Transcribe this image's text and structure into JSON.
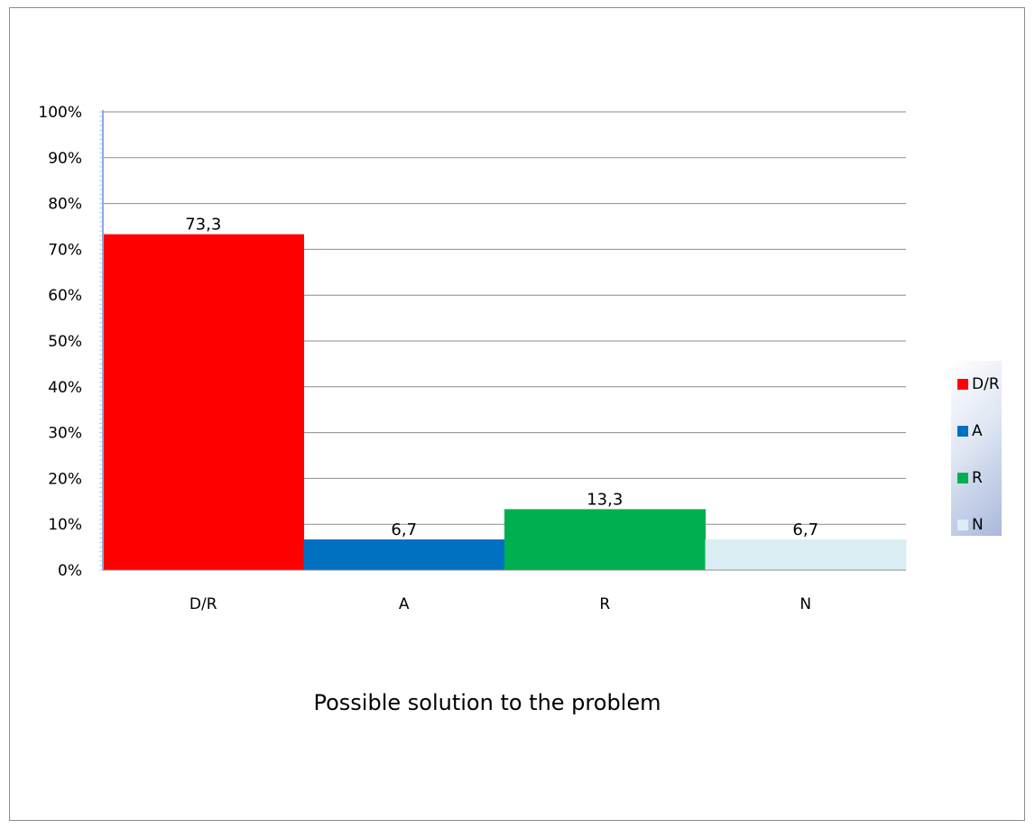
{
  "chart_data": {
    "type": "bar",
    "title": "Possible solution to the problem",
    "categories": [
      "D/R",
      "A",
      "R",
      "N"
    ],
    "values": [
      73.3,
      6.7,
      13.3,
      6.7
    ],
    "data_labels": [
      "73,3",
      "6,7",
      "13,3",
      "6,7"
    ],
    "colors": [
      "#ff0000",
      "#0070c0",
      "#00b050",
      "#daeef3"
    ],
    "yticks": [
      "0%",
      "10%",
      "20%",
      "30%",
      "40%",
      "50%",
      "60%",
      "70%",
      "80%",
      "90%",
      "100%"
    ],
    "ylim": [
      0,
      100
    ],
    "grid": true,
    "legend": {
      "position": "right",
      "entries": [
        "D/R",
        "A",
        "R",
        "N"
      ]
    }
  }
}
